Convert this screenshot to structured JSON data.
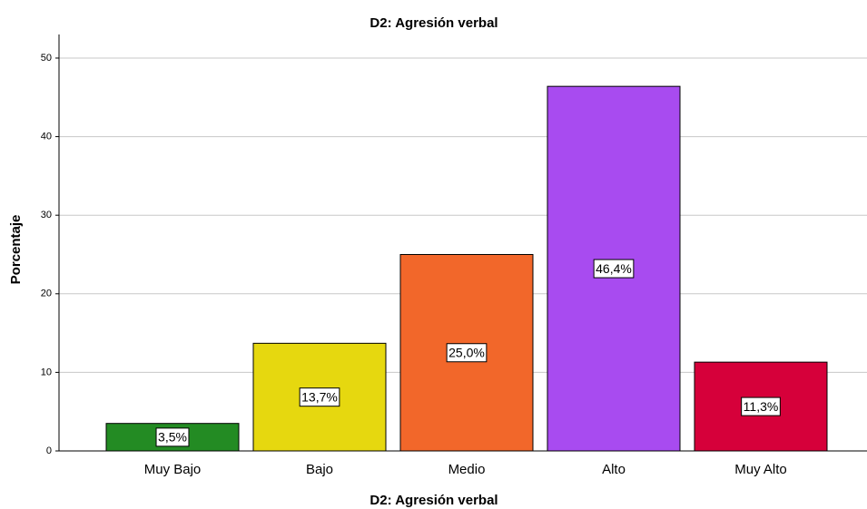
{
  "chart_data": {
    "type": "bar",
    "title": "D2: Agresión verbal",
    "x_label": "D2: Agresión verbal",
    "y_label": "Porcentaje",
    "categories": [
      "Muy Bajo",
      "Bajo",
      "Medio",
      "Alto",
      "Muy Alto"
    ],
    "values": [
      3.5,
      13.7,
      25.0,
      46.4,
      11.3
    ],
    "value_labels": [
      "3,5%",
      "13,7%",
      "25,0%",
      "46,4%",
      "11,3%"
    ],
    "colors": [
      "#238b23",
      "#e6d80f",
      "#f2672a",
      "#a84bf0",
      "#d6003a"
    ],
    "ylim": [
      0,
      53
    ],
    "yticks": [
      0,
      10,
      20,
      30,
      40,
      50
    ],
    "grid": true
  }
}
